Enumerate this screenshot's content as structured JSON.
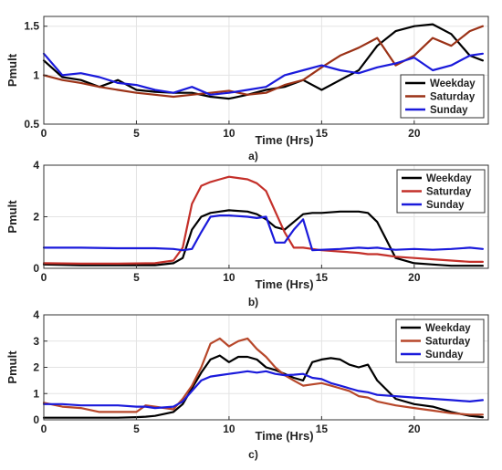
{
  "chart_data": [
    {
      "type": "line",
      "panel_label": "a)",
      "xlabel": "Time (Hrs)",
      "ylabel": "Pmult",
      "xlim": [
        0,
        24
      ],
      "ylim": [
        0.5,
        1.6
      ],
      "xticks": [
        "0",
        "5",
        "10",
        "15",
        "20"
      ],
      "yticks": [
        "0.5",
        "1",
        "1.5"
      ],
      "grid": true,
      "legend_position": "bottom-right",
      "colors": [
        "#000000",
        "#9b3217",
        "#1a1adb"
      ],
      "x": [
        0,
        1,
        2,
        3,
        4,
        5,
        6,
        7,
        8,
        9,
        10,
        11,
        12,
        13,
        14,
        15,
        16,
        17,
        18,
        19,
        20,
        21,
        22,
        23,
        23.7
      ],
      "series": [
        {
          "name": "Weekday",
          "values": [
            1.15,
            0.98,
            0.95,
            0.88,
            0.95,
            0.85,
            0.83,
            0.82,
            0.82,
            0.78,
            0.76,
            0.8,
            0.85,
            0.88,
            0.95,
            0.85,
            0.95,
            1.05,
            1.3,
            1.45,
            1.5,
            1.52,
            1.42,
            1.2,
            1.15
          ]
        },
        {
          "name": "Saturday",
          "values": [
            1.0,
            0.95,
            0.92,
            0.88,
            0.85,
            0.82,
            0.8,
            0.78,
            0.8,
            0.82,
            0.84,
            0.8,
            0.82,
            0.9,
            0.95,
            1.08,
            1.2,
            1.28,
            1.38,
            1.1,
            1.2,
            1.38,
            1.3,
            1.45,
            1.5
          ]
        },
        {
          "name": "Sunday",
          "values": [
            1.22,
            1.0,
            1.02,
            0.98,
            0.92,
            0.9,
            0.85,
            0.82,
            0.88,
            0.8,
            0.82,
            0.85,
            0.88,
            1.0,
            1.05,
            1.1,
            1.05,
            1.02,
            1.08,
            1.12,
            1.18,
            1.05,
            1.1,
            1.2,
            1.22
          ]
        }
      ]
    },
    {
      "type": "line",
      "panel_label": "b)",
      "xlabel": "Time (Hrs)",
      "ylabel": "Pmult",
      "xlim": [
        0,
        24
      ],
      "ylim": [
        0,
        4
      ],
      "xticks": [
        "0",
        "5",
        "10",
        "15",
        "20"
      ],
      "yticks": [
        "0",
        "2",
        "4"
      ],
      "grid": true,
      "legend_position": "top-right",
      "colors": [
        "#000000",
        "#c4302a",
        "#1a1adb"
      ],
      "x": [
        0,
        2,
        4,
        6,
        7,
        7.5,
        8,
        8.5,
        9,
        9.5,
        10,
        11,
        11.5,
        12,
        12.5,
        13,
        13.5,
        14,
        14.5,
        15,
        16,
        17,
        17.5,
        18,
        18.5,
        19,
        20,
        21,
        22,
        23,
        23.7
      ],
      "series": [
        {
          "name": "Weekday",
          "values": [
            0.15,
            0.12,
            0.12,
            0.12,
            0.2,
            0.4,
            1.5,
            2.0,
            2.15,
            2.2,
            2.25,
            2.2,
            2.1,
            1.9,
            1.6,
            1.5,
            1.8,
            2.1,
            2.15,
            2.15,
            2.2,
            2.2,
            2.15,
            1.8,
            1.1,
            0.4,
            0.2,
            0.15,
            0.1,
            0.1,
            0.1
          ]
        },
        {
          "name": "Saturday",
          "values": [
            0.2,
            0.18,
            0.18,
            0.2,
            0.3,
            0.8,
            2.5,
            3.2,
            3.35,
            3.45,
            3.55,
            3.45,
            3.3,
            3.0,
            2.2,
            1.4,
            0.8,
            0.8,
            0.75,
            0.7,
            0.65,
            0.6,
            0.55,
            0.55,
            0.5,
            0.45,
            0.4,
            0.35,
            0.3,
            0.25,
            0.25
          ]
        },
        {
          "name": "Sunday",
          "values": [
            0.8,
            0.8,
            0.78,
            0.78,
            0.75,
            0.7,
            0.75,
            1.4,
            2.0,
            2.05,
            2.05,
            2.0,
            1.95,
            2.0,
            1.0,
            1.0,
            1.5,
            1.9,
            0.7,
            0.72,
            0.75,
            0.8,
            0.78,
            0.8,
            0.75,
            0.72,
            0.75,
            0.72,
            0.75,
            0.8,
            0.75
          ]
        }
      ]
    },
    {
      "type": "line",
      "panel_label": "c)",
      "xlabel": "Time (Hrs)",
      "ylabel": "Pmult",
      "xlim": [
        0,
        24
      ],
      "ylim": [
        0,
        4
      ],
      "xticks": [
        "0",
        "5",
        "10",
        "15",
        "20"
      ],
      "yticks": [
        "0",
        "1",
        "2",
        "3",
        "4"
      ],
      "grid": true,
      "legend_position": "top-right",
      "colors": [
        "#000000",
        "#b7472a",
        "#1a1adb"
      ],
      "x": [
        0,
        1,
        2,
        3,
        4,
        5,
        5.5,
        6,
        7,
        7.5,
        8,
        8.5,
        9,
        9.5,
        10,
        10.5,
        11,
        11.5,
        12,
        12.5,
        13,
        13.5,
        14,
        14.5,
        15,
        15.5,
        16,
        16.5,
        17,
        17.5,
        18,
        19,
        20,
        21,
        22,
        23,
        23.7
      ],
      "series": [
        {
          "name": "Weekday",
          "values": [
            0.08,
            0.08,
            0.08,
            0.08,
            0.08,
            0.1,
            0.12,
            0.15,
            0.3,
            0.6,
            1.2,
            1.8,
            2.3,
            2.45,
            2.2,
            2.4,
            2.4,
            2.3,
            2.0,
            1.9,
            1.75,
            1.6,
            1.5,
            2.2,
            2.3,
            2.35,
            2.3,
            2.1,
            2.0,
            2.1,
            1.5,
            0.8,
            0.6,
            0.5,
            0.3,
            0.15,
            0.1
          ]
        },
        {
          "name": "Saturday",
          "values": [
            0.65,
            0.5,
            0.45,
            0.3,
            0.3,
            0.3,
            0.55,
            0.5,
            0.4,
            0.8,
            1.3,
            2.0,
            2.9,
            3.1,
            2.8,
            3.0,
            3.1,
            2.7,
            2.4,
            2.0,
            1.7,
            1.5,
            1.3,
            1.35,
            1.4,
            1.3,
            1.2,
            1.1,
            0.9,
            0.85,
            0.7,
            0.55,
            0.45,
            0.35,
            0.25,
            0.2,
            0.2
          ]
        },
        {
          "name": "Sunday",
          "values": [
            0.6,
            0.6,
            0.55,
            0.55,
            0.55,
            0.5,
            0.5,
            0.45,
            0.5,
            0.7,
            1.1,
            1.5,
            1.65,
            1.7,
            1.75,
            1.8,
            1.85,
            1.8,
            1.85,
            1.75,
            1.7,
            1.72,
            1.75,
            1.6,
            1.55,
            1.4,
            1.3,
            1.2,
            1.1,
            1.05,
            0.95,
            0.9,
            0.85,
            0.8,
            0.75,
            0.7,
            0.75
          ]
        }
      ]
    }
  ]
}
